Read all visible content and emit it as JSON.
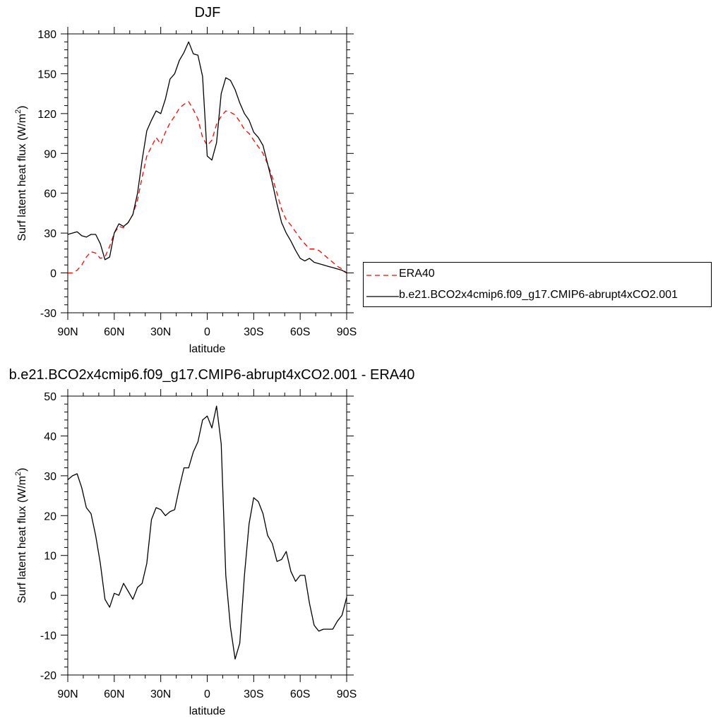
{
  "chart_data": [
    {
      "type": "line",
      "title": "DJF",
      "xlabel": "latitude",
      "ylabel": "Surf latent heat flux (W/m²)",
      "ylabel_main": "Surf latent heat flux (W/m",
      "ylabel_sup": "2",
      "ylabel_tail": ")",
      "xlim": [
        90,
        -90
      ],
      "ylim": [
        -30,
        180
      ],
      "xticks": [
        90,
        60,
        30,
        0,
        -30,
        -60,
        -90
      ],
      "xtick_labels": [
        "90N",
        "60N",
        "30N",
        "0",
        "30S",
        "60S",
        "90S"
      ],
      "yticks": [
        -30,
        0,
        30,
        60,
        90,
        120,
        150,
        180
      ],
      "ytick_labels": [
        "-30",
        "0",
        "30",
        "60",
        "90",
        "120",
        "150",
        "180"
      ],
      "legend_position": "right",
      "series": [
        {
          "name": "ERA40",
          "color": "#ff0000",
          "style": "dashed",
          "x": [
            90,
            87,
            84,
            81,
            78,
            75,
            72,
            69,
            66,
            63,
            60,
            57,
            54,
            51,
            48,
            45,
            42,
            39,
            36,
            33,
            30,
            27,
            24,
            21,
            18,
            15,
            12,
            9,
            6,
            3,
            0,
            -3,
            -6,
            -9,
            -12,
            -15,
            -18,
            -21,
            -24,
            -27,
            -30,
            -33,
            -36,
            -39,
            -42,
            -45,
            -48,
            -51,
            -54,
            -57,
            -60,
            -63,
            -66,
            -69,
            -72,
            -75,
            -78,
            -81,
            -84,
            -87,
            -90
          ],
          "y": [
            0,
            0,
            2,
            6,
            12,
            16,
            15,
            11,
            12,
            20,
            30,
            35,
            34,
            38,
            44,
            55,
            72,
            88,
            95,
            102,
            97,
            106,
            113,
            118,
            124,
            127,
            129,
            123,
            116,
            102,
            96,
            100,
            112,
            118,
            122,
            121,
            119,
            114,
            108,
            105,
            100,
            95,
            90,
            82,
            72,
            60,
            48,
            40,
            36,
            31,
            26,
            22,
            18,
            18,
            17,
            14,
            11,
            8,
            5,
            3,
            0
          ]
        },
        {
          "name": "b.e21.BCO2x4cmip6.f09_g17.CMIP6-abrupt4xCO2.001",
          "color": "#000000",
          "style": "solid",
          "x": [
            90,
            87,
            84,
            81,
            78,
            75,
            72,
            69,
            66,
            63,
            60,
            57,
            54,
            51,
            48,
            45,
            42,
            39,
            36,
            33,
            30,
            27,
            24,
            21,
            18,
            15,
            12,
            9,
            6,
            3,
            0,
            -3,
            -6,
            -9,
            -12,
            -15,
            -18,
            -21,
            -24,
            -27,
            -30,
            -33,
            -36,
            -39,
            -42,
            -45,
            -48,
            -51,
            -54,
            -57,
            -60,
            -63,
            -66,
            -69,
            -72,
            -75,
            -78,
            -81,
            -84,
            -87,
            -90
          ],
          "y": [
            29,
            30,
            31,
            28,
            27,
            29,
            29,
            22,
            10,
            12,
            30,
            37,
            35,
            38,
            44,
            60,
            85,
            107,
            115,
            122,
            120,
            131,
            146,
            150,
            160,
            166,
            174,
            165,
            164,
            148,
            88,
            85,
            98,
            135,
            147,
            145,
            138,
            128,
            120,
            115,
            106,
            102,
            96,
            82,
            68,
            52,
            38,
            30,
            24,
            17,
            11,
            9,
            11,
            8,
            7,
            6,
            5,
            4,
            3,
            2,
            0
          ]
        }
      ]
    },
    {
      "type": "line",
      "title": "b.e21.BCO2x4cmip6.f09_g17.CMIP6-abrupt4xCO2.001 - ERA40",
      "xlabel": "latitude",
      "ylabel": "Surf latent heat flux (W/m²)",
      "ylabel_main": "Surf latent heat flux (W/m",
      "ylabel_sup": "2",
      "ylabel_tail": ")",
      "xlim": [
        90,
        -90
      ],
      "ylim": [
        -20,
        50
      ],
      "xticks": [
        90,
        60,
        30,
        0,
        -30,
        -60,
        -90
      ],
      "xtick_labels": [
        "90N",
        "60N",
        "30N",
        "0",
        "30S",
        "60S",
        "90S"
      ],
      "yticks": [
        -20,
        -10,
        0,
        10,
        20,
        30,
        40,
        50
      ],
      "ytick_labels": [
        "-20",
        "-10",
        "0",
        "10",
        "20",
        "30",
        "40",
        "50"
      ],
      "series": [
        {
          "color": "#000000",
          "style": "solid",
          "x": [
            90,
            87,
            84,
            81,
            78,
            75,
            72,
            69,
            66,
            63,
            60,
            57,
            54,
            51,
            48,
            45,
            42,
            39,
            36,
            33,
            30,
            27,
            24,
            21,
            18,
            15,
            12,
            9,
            6,
            3,
            0,
            -3,
            -6,
            -9,
            -12,
            -15,
            -18,
            -21,
            -24,
            -27,
            -30,
            -33,
            -36,
            -39,
            -42,
            -45,
            -48,
            -51,
            -54,
            -57,
            -60,
            -63,
            -66,
            -69,
            -72,
            -75,
            -78,
            -81,
            -84,
            -87,
            -90
          ],
          "y": [
            29,
            30,
            30.5,
            27,
            22,
            20.5,
            15,
            8,
            -1,
            -3,
            0.5,
            0,
            3,
            1,
            -1,
            2,
            3,
            8,
            19,
            22,
            21.5,
            20,
            21,
            21.5,
            27,
            32,
            32,
            36,
            38.5,
            44,
            45,
            42,
            47.5,
            38,
            5,
            -8,
            -16,
            -12,
            5,
            18,
            24.5,
            23.5,
            20.5,
            15,
            13,
            8.5,
            9,
            11,
            6,
            3.5,
            5,
            5,
            -2,
            -7.5,
            -9,
            -8.5,
            -8.5,
            -8.5,
            -6.5,
            -5,
            -0.5
          ]
        }
      ]
    }
  ]
}
